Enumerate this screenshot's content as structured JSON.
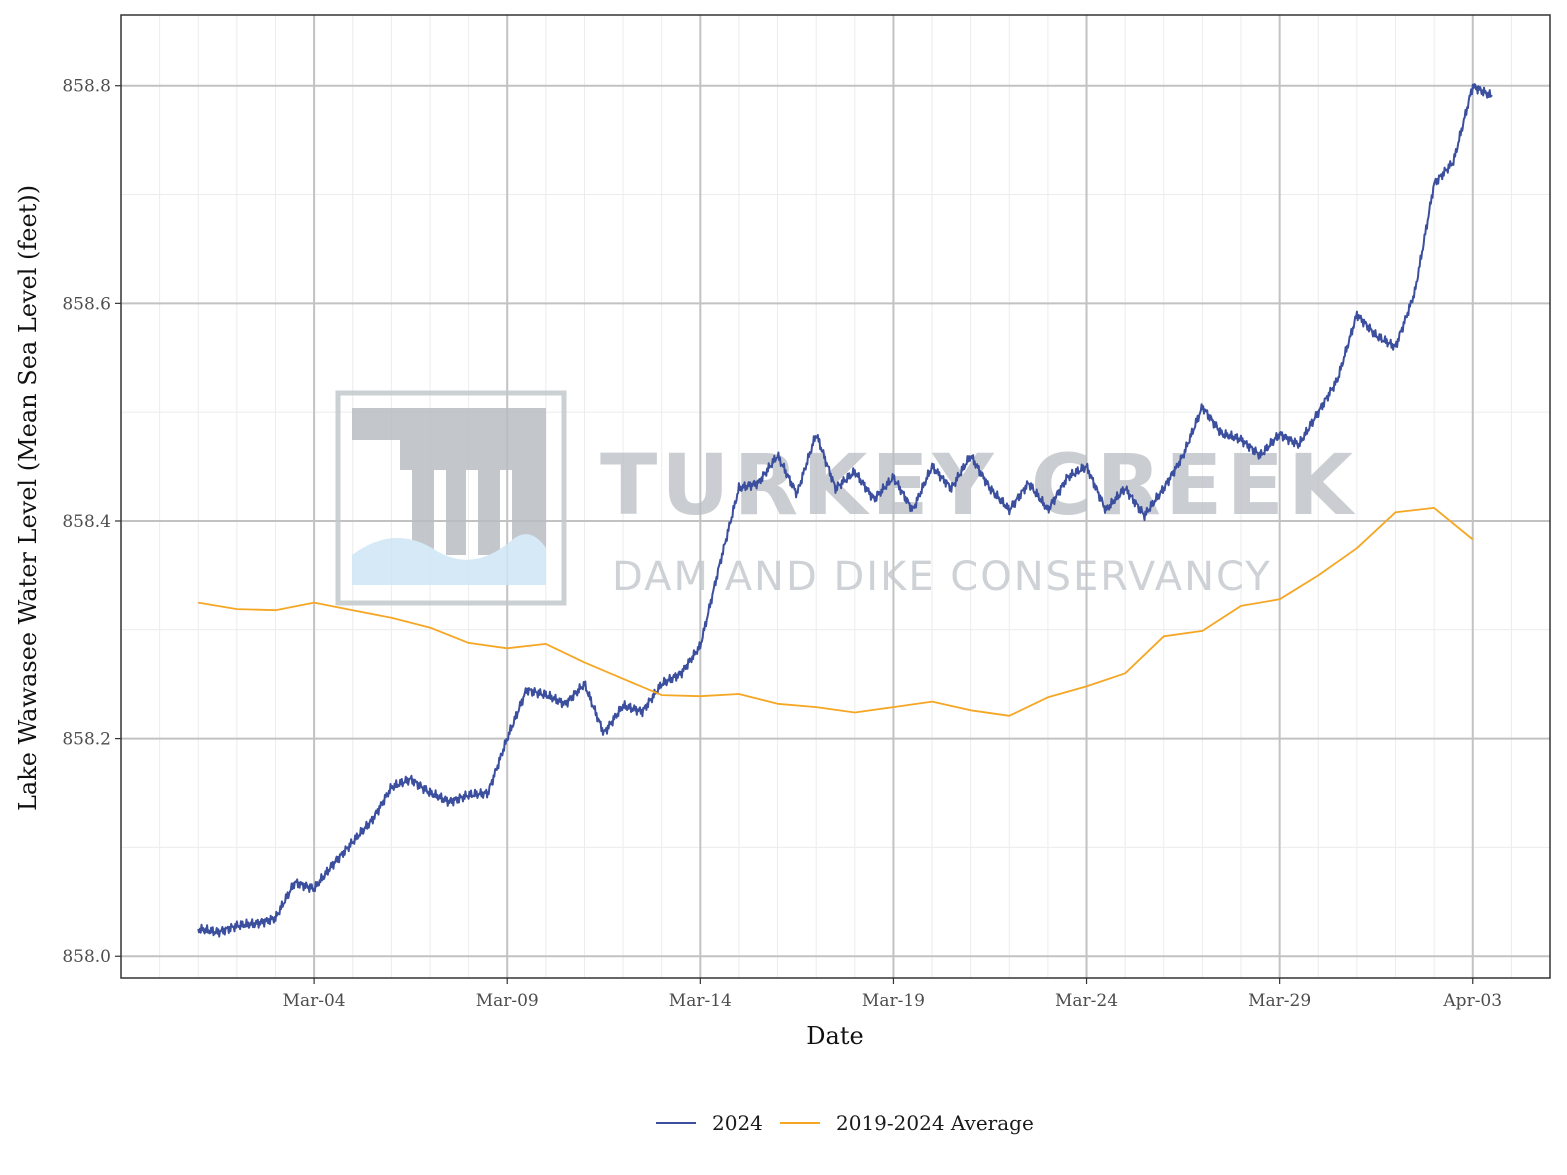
{
  "watermark": {
    "title": "TURKEY CREEK",
    "subtitle": "DAM AND DIKE CONSERVANCY",
    "logo_icon": "dam-logo-icon"
  },
  "chart_data": {
    "type": "line",
    "title": "",
    "xlabel": "Date",
    "ylabel": "Lake Wawasee Water Level (Mean Sea Level (feet))",
    "x_type": "date",
    "xlim": [
      "2024-02-28",
      "2024-04-05"
    ],
    "ylim": [
      857.98,
      858.865
    ],
    "x_ticks": [
      {
        "date": "2024-03-04",
        "label": "Mar-04"
      },
      {
        "date": "2024-03-09",
        "label": "Mar-09"
      },
      {
        "date": "2024-03-14",
        "label": "Mar-14"
      },
      {
        "date": "2024-03-19",
        "label": "Mar-19"
      },
      {
        "date": "2024-03-24",
        "label": "Mar-24"
      },
      {
        "date": "2024-03-29",
        "label": "Mar-29"
      },
      {
        "date": "2024-04-03",
        "label": "Apr-03"
      }
    ],
    "y_ticks": [
      {
        "value": 858.0,
        "label": "858.0"
      },
      {
        "value": 858.2,
        "label": "858.2"
      },
      {
        "value": 858.4,
        "label": "858.4"
      },
      {
        "value": 858.6,
        "label": "858.6"
      },
      {
        "value": 858.8,
        "label": "858.8"
      }
    ],
    "grid": true,
    "legend_position": "bottom",
    "series": [
      {
        "name": "2024",
        "color": "#3b4f9e",
        "points": [
          [
            "2024-03-01T00:00",
            858.025
          ],
          [
            "2024-03-01T12:00",
            858.022
          ],
          [
            "2024-03-02T00:00",
            858.028
          ],
          [
            "2024-03-02T12:00",
            858.03
          ],
          [
            "2024-03-03T00:00",
            858.035
          ],
          [
            "2024-03-03T12:00",
            858.068
          ],
          [
            "2024-03-04T00:00",
            858.062
          ],
          [
            "2024-03-04T12:00",
            858.085
          ],
          [
            "2024-03-05T00:00",
            858.105
          ],
          [
            "2024-03-05T12:00",
            858.125
          ],
          [
            "2024-03-06T00:00",
            858.155
          ],
          [
            "2024-03-06T12:00",
            858.163
          ],
          [
            "2024-03-07T00:00",
            858.15
          ],
          [
            "2024-03-07T12:00",
            858.142
          ],
          [
            "2024-03-08T00:00",
            858.148
          ],
          [
            "2024-03-08T12:00",
            858.15
          ],
          [
            "2024-03-09T00:00",
            858.2
          ],
          [
            "2024-03-09T12:00",
            858.245
          ],
          [
            "2024-03-10T00:00",
            858.24
          ],
          [
            "2024-03-10T12:00",
            858.232
          ],
          [
            "2024-03-11T00:00",
            858.25
          ],
          [
            "2024-03-11T12:00",
            858.205
          ],
          [
            "2024-03-12T00:00",
            858.23
          ],
          [
            "2024-03-12T12:00",
            858.225
          ],
          [
            "2024-03-13T00:00",
            858.25
          ],
          [
            "2024-03-13T12:00",
            858.26
          ],
          [
            "2024-03-14T00:00",
            858.285
          ],
          [
            "2024-03-14T12:00",
            858.36
          ],
          [
            "2024-03-15T00:00",
            858.43
          ],
          [
            "2024-03-15T12:00",
            858.435
          ],
          [
            "2024-03-16T00:00",
            858.46
          ],
          [
            "2024-03-16T12:00",
            858.425
          ],
          [
            "2024-03-17T00:00",
            858.48
          ],
          [
            "2024-03-17T12:00",
            858.43
          ],
          [
            "2024-03-18T00:00",
            858.445
          ],
          [
            "2024-03-18T12:00",
            858.42
          ],
          [
            "2024-03-19T00:00",
            858.44
          ],
          [
            "2024-03-19T12:00",
            858.41
          ],
          [
            "2024-03-20T00:00",
            858.45
          ],
          [
            "2024-03-20T12:00",
            858.43
          ],
          [
            "2024-03-21T00:00",
            858.46
          ],
          [
            "2024-03-21T12:00",
            858.43
          ],
          [
            "2024-03-22T00:00",
            858.41
          ],
          [
            "2024-03-22T12:00",
            858.435
          ],
          [
            "2024-03-23T00:00",
            858.41
          ],
          [
            "2024-03-23T12:00",
            858.44
          ],
          [
            "2024-03-24T00:00",
            858.45
          ],
          [
            "2024-03-24T12:00",
            858.41
          ],
          [
            "2024-03-25T00:00",
            858.43
          ],
          [
            "2024-03-25T12:00",
            858.405
          ],
          [
            "2024-03-26T00:00",
            858.43
          ],
          [
            "2024-03-26T12:00",
            858.46
          ],
          [
            "2024-03-27T00:00",
            858.505
          ],
          [
            "2024-03-27T12:00",
            858.48
          ],
          [
            "2024-03-28T00:00",
            858.475
          ],
          [
            "2024-03-28T12:00",
            858.46
          ],
          [
            "2024-03-29T00:00",
            858.48
          ],
          [
            "2024-03-29T12:00",
            858.47
          ],
          [
            "2024-03-30T00:00",
            858.5
          ],
          [
            "2024-03-30T12:00",
            858.53
          ],
          [
            "2024-03-31T00:00",
            858.59
          ],
          [
            "2024-03-31T12:00",
            858.57
          ],
          [
            "2024-04-01T00:00",
            858.56
          ],
          [
            "2024-04-01T12:00",
            858.61
          ],
          [
            "2024-04-02T00:00",
            858.71
          ],
          [
            "2024-04-02T12:00",
            858.73
          ],
          [
            "2024-04-03T00:00",
            858.8
          ],
          [
            "2024-04-03T12:00",
            858.79
          ]
        ]
      },
      {
        "name": "2019-2024 Average",
        "color": "#f5a623",
        "points": [
          [
            "2024-03-01",
            858.325
          ],
          [
            "2024-03-02",
            858.319
          ],
          [
            "2024-03-03",
            858.318
          ],
          [
            "2024-03-04",
            858.325
          ],
          [
            "2024-03-05",
            858.318
          ],
          [
            "2024-03-06",
            858.311
          ],
          [
            "2024-03-07",
            858.302
          ],
          [
            "2024-03-08",
            858.288
          ],
          [
            "2024-03-09",
            858.283
          ],
          [
            "2024-03-10",
            858.287
          ],
          [
            "2024-03-11",
            858.27
          ],
          [
            "2024-03-12",
            858.255
          ],
          [
            "2024-03-13",
            858.24
          ],
          [
            "2024-03-14",
            858.239
          ],
          [
            "2024-03-15",
            858.241
          ],
          [
            "2024-03-16",
            858.232
          ],
          [
            "2024-03-17",
            858.229
          ],
          [
            "2024-03-18",
            858.224
          ],
          [
            "2024-03-19",
            858.229
          ],
          [
            "2024-03-20",
            858.234
          ],
          [
            "2024-03-21",
            858.226
          ],
          [
            "2024-03-22",
            858.221
          ],
          [
            "2024-03-23",
            858.238
          ],
          [
            "2024-03-24",
            858.248
          ],
          [
            "2024-03-25",
            858.26
          ],
          [
            "2024-03-26",
            858.294
          ],
          [
            "2024-03-27",
            858.299
          ],
          [
            "2024-03-28",
            858.322
          ],
          [
            "2024-03-29",
            858.328
          ],
          [
            "2024-03-30",
            858.35
          ],
          [
            "2024-03-31",
            858.375
          ],
          [
            "2024-04-01",
            858.408
          ],
          [
            "2024-04-02",
            858.412
          ],
          [
            "2024-04-03",
            858.383
          ]
        ]
      }
    ]
  }
}
